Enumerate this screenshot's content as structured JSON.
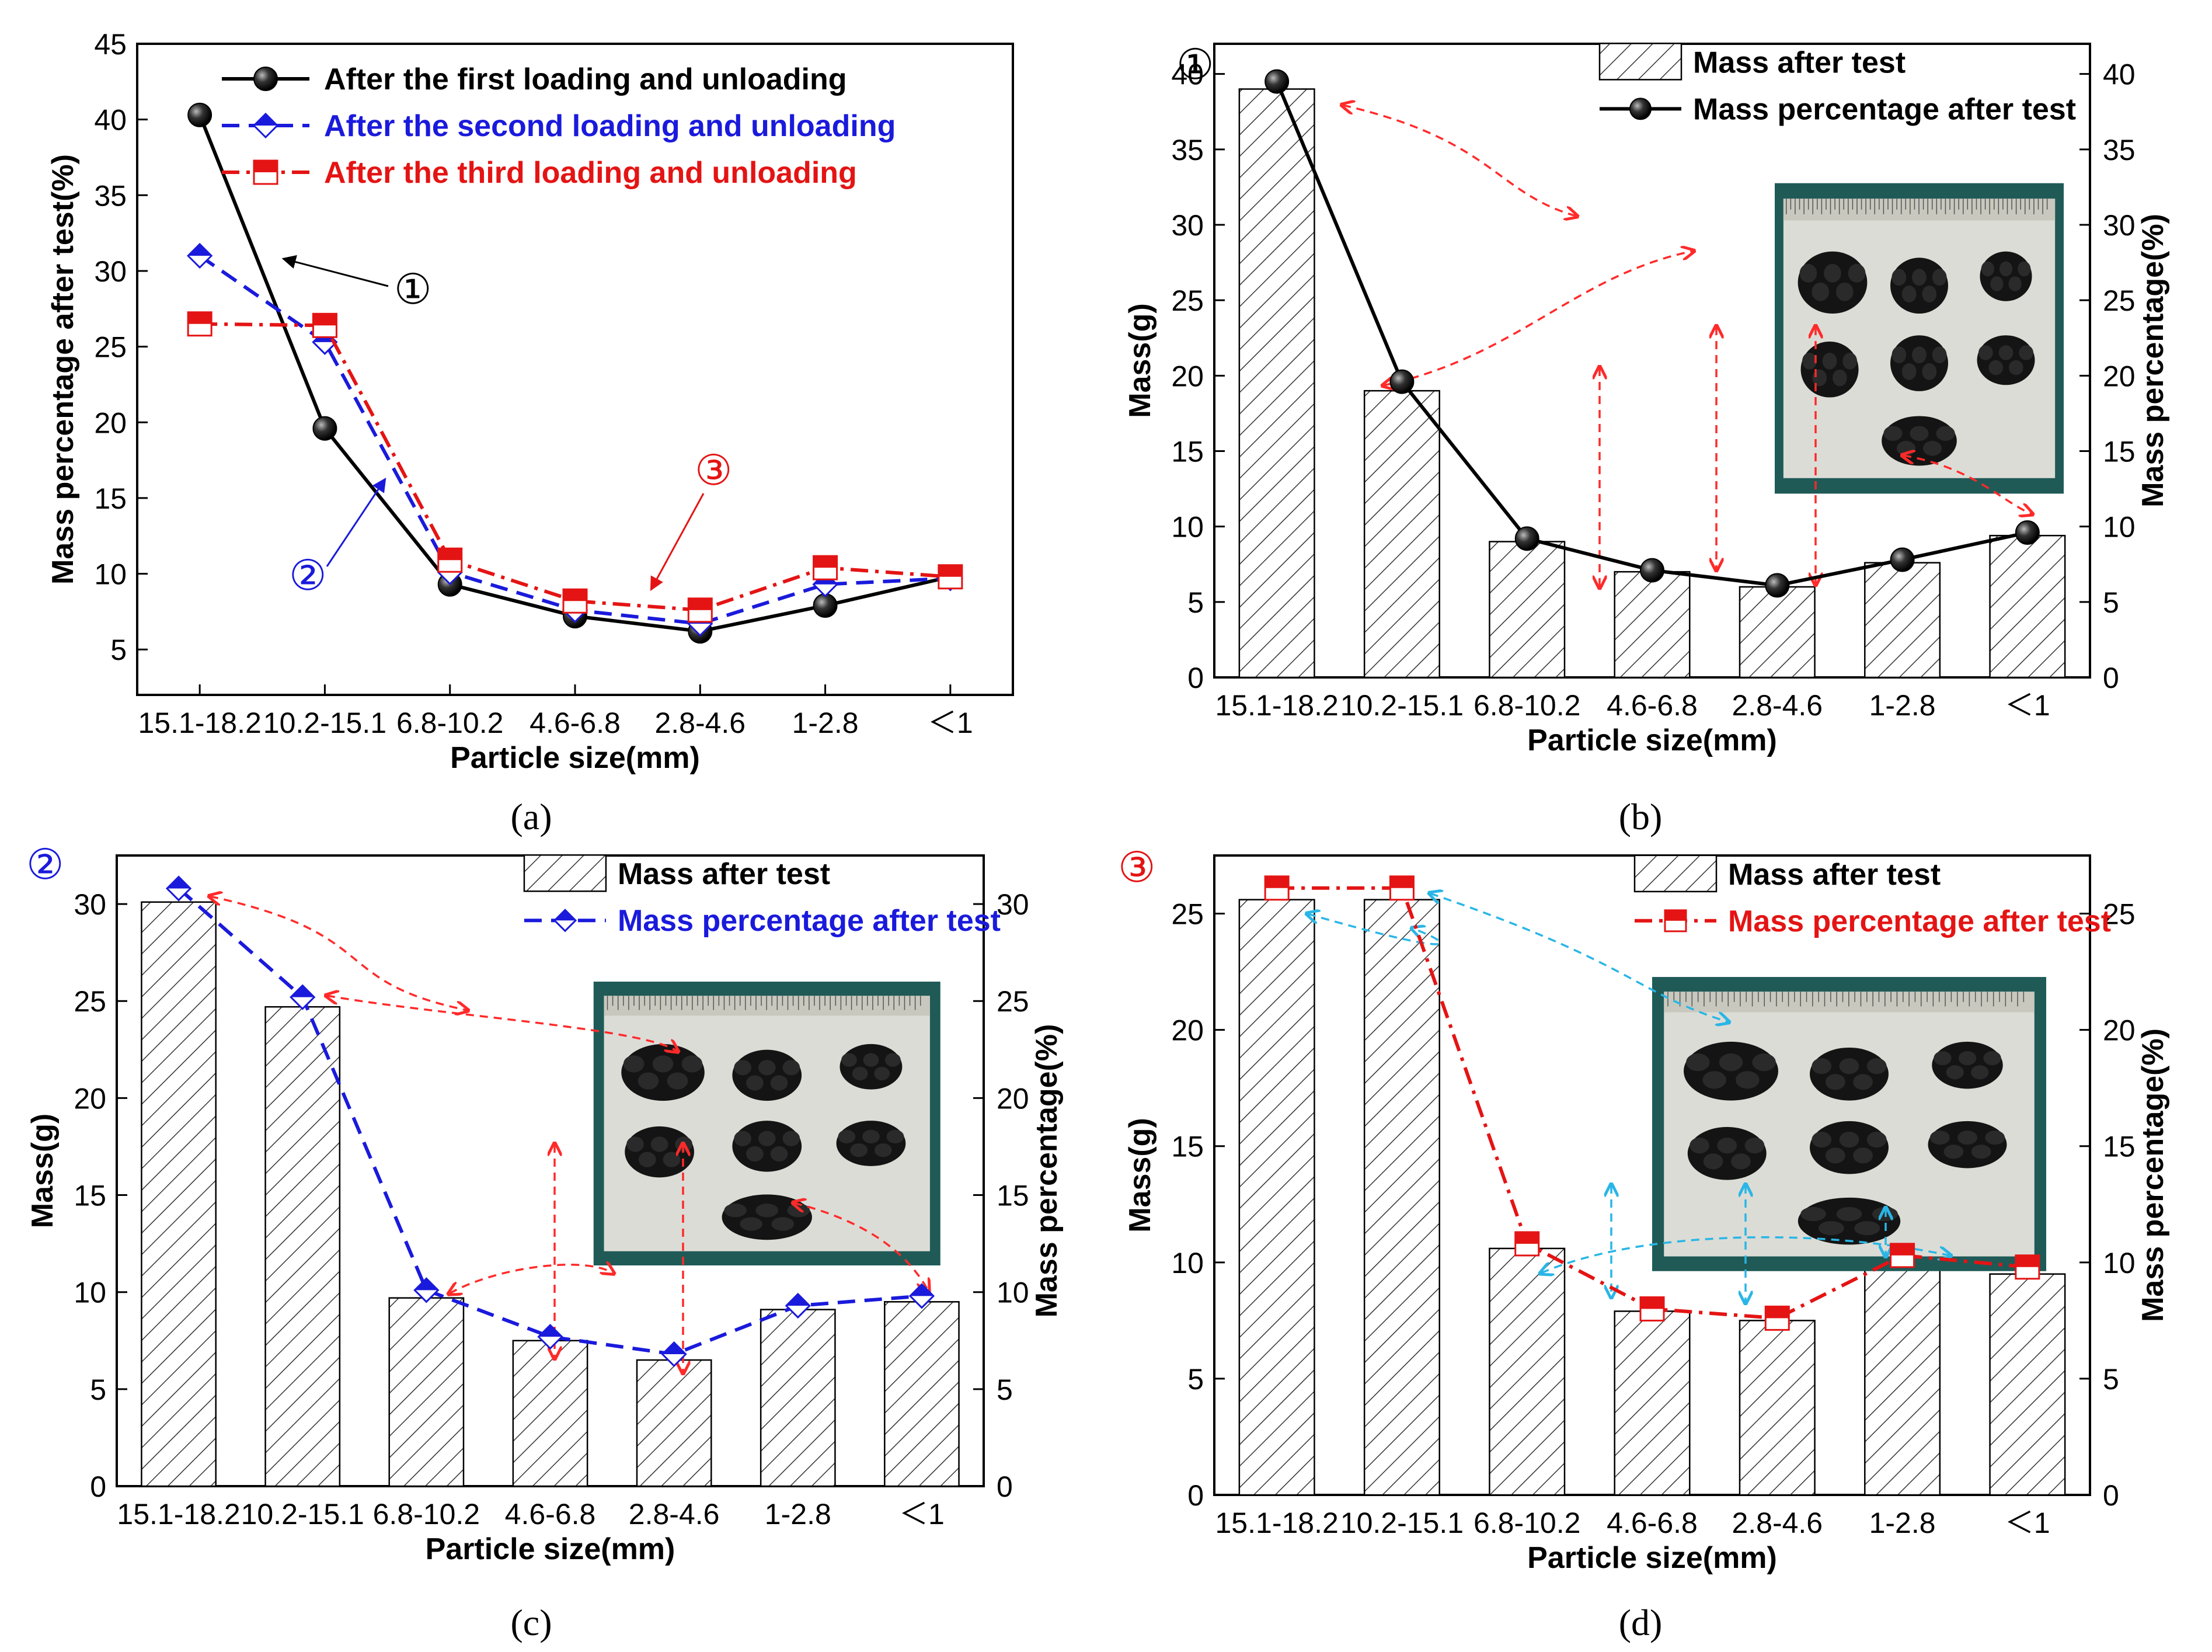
{
  "figure": {
    "panels": [
      {
        "id": "a",
        "caption": "(a)"
      },
      {
        "id": "b",
        "caption": "(b)"
      },
      {
        "id": "c",
        "caption": "(c)"
      },
      {
        "id": "d",
        "caption": "(d)"
      }
    ]
  },
  "colors": {
    "first": "#000000",
    "second": "#1a1adc",
    "third": "#e41414",
    "arrow_red": "#ff2a2a",
    "arrow_cyan": "#29b6e6",
    "photo_board": "#1f5a57",
    "photo_paper": "#dcdcd6"
  },
  "chart_data": [
    {
      "panel": "a",
      "type": "line",
      "categories": [
        "15.1-18.2",
        "10.2-15.1",
        "6.8-10.2",
        "4.6-6.8",
        "2.8-4.6",
        "1-2.8",
        "＜1"
      ],
      "xlabel": "Particle size(mm)",
      "ylabel": "Mass percentage after test(%)",
      "ylim": [
        2,
        45
      ],
      "yticks": [
        5,
        10,
        15,
        20,
        25,
        30,
        35,
        40,
        45
      ],
      "legend_position": "top",
      "series": [
        {
          "name": "After the first loading and unloading",
          "marker": "circle",
          "line": "solid",
          "values": [
            40.3,
            19.6,
            9.3,
            7.2,
            6.2,
            7.9,
            9.8
          ]
        },
        {
          "name": "After the second loading and unloading",
          "marker": "diamond",
          "line": "dashed",
          "values": [
            31.0,
            25.3,
            10.1,
            7.6,
            6.7,
            9.3,
            9.7
          ]
        },
        {
          "name": "After the third loading and unloading",
          "marker": "square",
          "line": "dashdot",
          "values": [
            26.5,
            26.4,
            10.9,
            8.2,
            7.6,
            10.4,
            9.8
          ]
        }
      ],
      "annotations": [
        "①",
        "②",
        "③"
      ]
    },
    {
      "panel": "b",
      "type": "bar",
      "label": "①",
      "categories": [
        "15.1-18.2",
        "10.2-15.1",
        "6.8-10.2",
        "4.6-6.8",
        "2.8-4.6",
        "1-2.8",
        "＜1"
      ],
      "xlabel": "Particle size(mm)",
      "ylabel": "Mass(g)",
      "ylabel_right": "Mass percentage(%)",
      "ylim": [
        0,
        42
      ],
      "yticks": [
        0,
        5,
        10,
        15,
        20,
        25,
        30,
        35,
        40
      ],
      "ylim_right": [
        0,
        42
      ],
      "yticks_right": [
        0,
        5,
        10,
        15,
        20,
        25,
        30,
        35,
        40
      ],
      "legend_position": "top-right",
      "series": [
        {
          "name": "Mass after test",
          "kind": "bar",
          "values": [
            39.0,
            19.0,
            9.0,
            7.0,
            6.0,
            7.6,
            9.4
          ]
        },
        {
          "name": "Mass percentage after test",
          "kind": "line",
          "axis": "right",
          "values": [
            39.5,
            19.6,
            9.2,
            7.1,
            6.1,
            7.8,
            9.6
          ]
        }
      ]
    },
    {
      "panel": "c",
      "type": "bar",
      "label": "②",
      "categories": [
        "15.1-18.2",
        "10.2-15.1",
        "6.8-10.2",
        "4.6-6.8",
        "2.8-4.6",
        "1-2.8",
        "＜1"
      ],
      "xlabel": "Particle size(mm)",
      "ylabel": "Mass(g)",
      "ylabel_right": "Mass percentage(%)",
      "ylim": [
        0,
        32.5
      ],
      "yticks": [
        0,
        5,
        10,
        15,
        20,
        25,
        30
      ],
      "ylim_right": [
        0,
        32.5
      ],
      "yticks_right": [
        0,
        5,
        10,
        15,
        20,
        25,
        30
      ],
      "legend_position": "top-right",
      "series": [
        {
          "name": "Mass after test",
          "kind": "bar",
          "values": [
            30.1,
            24.7,
            9.7,
            7.5,
            6.5,
            9.1,
            9.5
          ]
        },
        {
          "name": "Mass percentage after test",
          "kind": "line",
          "axis": "right",
          "values": [
            30.8,
            25.2,
            10.1,
            7.7,
            6.8,
            9.3,
            9.8
          ]
        }
      ]
    },
    {
      "panel": "d",
      "type": "bar",
      "label": "③",
      "categories": [
        "15.1-18.2",
        "10.2-15.1",
        "6.8-10.2",
        "4.6-6.8",
        "2.8-4.6",
        "1-2.8",
        "＜1"
      ],
      "xlabel": "Particle size(mm)",
      "ylabel": "Mass(g)",
      "ylabel_right": "Mass percentage(%)",
      "ylim": [
        0,
        27.5
      ],
      "yticks": [
        0,
        5,
        10,
        15,
        20,
        25
      ],
      "ylim_right": [
        0,
        27.5
      ],
      "yticks_right": [
        0,
        5,
        10,
        15,
        20,
        25
      ],
      "legend_position": "top-right",
      "series": [
        {
          "name": "Mass after test",
          "kind": "bar",
          "values": [
            25.6,
            25.6,
            10.6,
            7.9,
            7.5,
            10.1,
            9.5
          ]
        },
        {
          "name": "Mass percentage after test",
          "kind": "line",
          "axis": "right",
          "values": [
            26.1,
            26.1,
            10.8,
            8.0,
            7.6,
            10.3,
            9.8
          ]
        }
      ]
    }
  ]
}
